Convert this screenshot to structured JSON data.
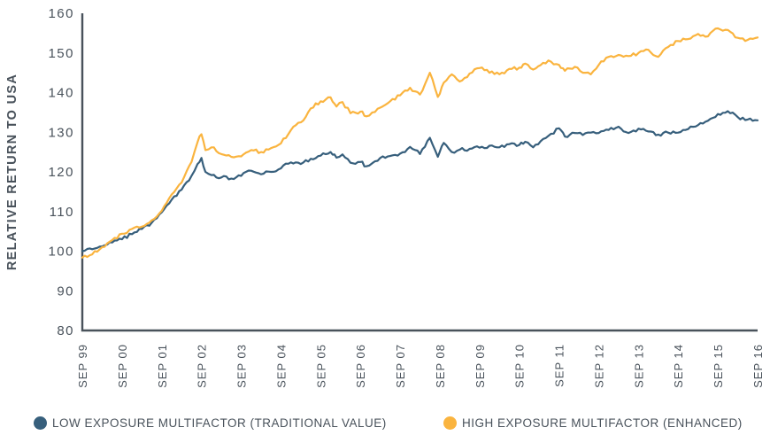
{
  "chart_data": {
    "type": "line",
    "title": "",
    "xlabel": "",
    "ylabel": "RELATIVE RETURN TO USA",
    "ylim": [
      80,
      160
    ],
    "yticks": [
      160,
      150,
      140,
      130,
      120,
      110,
      100,
      90,
      80
    ],
    "xtick_labels": [
      "SEP 99",
      "SEP 00",
      "SEP 01",
      "SEP 02",
      "SEP 03",
      "SEP 04",
      "SEP 05",
      "SEP 06",
      "SEP 07",
      "SEP 08",
      "SEP 09",
      "SEP 10",
      "SEP 11",
      "SEP 12",
      "SEP 13",
      "SEP 14",
      "SEP 15",
      "SEP 16"
    ],
    "x_unit": "years since Sep 1999 (one point ≈ quarterly, read from plot)",
    "grid": false,
    "legend_position": "bottom",
    "axis_color": "#49525B",
    "text_color": "#49525B",
    "noise_amplitude": 0.45,
    "x": [
      0.0,
      0.25,
      0.5,
      0.75,
      1.0,
      1.25,
      1.5,
      1.75,
      2.0,
      2.25,
      2.5,
      2.75,
      2.9,
      3.0,
      3.1,
      3.25,
      3.5,
      3.75,
      4.0,
      4.25,
      4.5,
      4.75,
      5.0,
      5.25,
      5.5,
      5.75,
      6.0,
      6.25,
      6.4,
      6.55,
      6.75,
      7.0,
      7.15,
      7.3,
      7.5,
      7.75,
      8.0,
      8.25,
      8.5,
      8.75,
      8.95,
      9.1,
      9.3,
      9.5,
      9.75,
      10.0,
      10.25,
      10.5,
      10.75,
      11.0,
      11.15,
      11.35,
      11.6,
      11.8,
      12.0,
      12.15,
      12.4,
      12.6,
      12.8,
      13.0,
      13.25,
      13.5,
      13.75,
      14.0,
      14.25,
      14.5,
      14.75,
      15.0,
      15.25,
      15.5,
      15.75,
      16.0,
      16.25,
      16.5,
      16.75,
      17.0
    ],
    "series": [
      {
        "name": "LOW EXPOSURE MULTIFACTOR (TRADITIONAL VALUE)",
        "color": "#375F7C",
        "values": [
          100.0,
          100.5,
          101.2,
          102.2,
          103.0,
          104.3,
          105.6,
          107.2,
          109.8,
          113.0,
          115.5,
          119.0,
          122.0,
          123.5,
          120.0,
          119.2,
          118.6,
          118.3,
          119.0,
          120.3,
          119.4,
          120.0,
          120.9,
          122.4,
          122.0,
          123.3,
          124.1,
          125.0,
          123.6,
          124.4,
          122.3,
          122.5,
          121.4,
          122.2,
          123.5,
          124.0,
          124.6,
          126.3,
          124.5,
          128.6,
          123.8,
          127.3,
          125.0,
          125.6,
          125.8,
          126.1,
          126.6,
          126.2,
          127.0,
          126.8,
          127.6,
          126.2,
          128.3,
          129.6,
          131.0,
          128.9,
          129.8,
          129.3,
          129.9,
          129.8,
          130.6,
          131.4,
          129.8,
          130.9,
          130.2,
          129.4,
          129.9,
          129.9,
          130.8,
          131.8,
          132.9,
          134.6,
          135.3,
          133.8,
          133.2,
          133.0
        ]
      },
      {
        "name": "HIGH EXPOSURE MULTIFACTOR (ENHANCED)",
        "color": "#FAB43F",
        "values": [
          98.4,
          99.2,
          101.0,
          102.8,
          104.4,
          105.6,
          106.2,
          107.8,
          110.2,
          114.3,
          117.3,
          122.5,
          127.5,
          129.5,
          125.5,
          126.2,
          124.5,
          123.8,
          123.9,
          125.5,
          125.0,
          126.0,
          127.2,
          130.5,
          132.5,
          136.0,
          137.8,
          138.8,
          136.5,
          137.6,
          134.8,
          135.2,
          134.0,
          135.0,
          136.2,
          137.8,
          139.3,
          141.2,
          139.5,
          145.0,
          138.9,
          142.5,
          144.6,
          142.8,
          144.8,
          146.2,
          145.0,
          144.6,
          146.0,
          146.3,
          147.3,
          145.8,
          147.5,
          147.8,
          147.0,
          145.5,
          146.5,
          145.0,
          144.6,
          147.0,
          149.0,
          149.5,
          149.2,
          150.0,
          150.8,
          149.0,
          151.5,
          153.0,
          153.5,
          154.8,
          154.2,
          156.2,
          155.8,
          153.8,
          153.3,
          153.9
        ]
      }
    ]
  }
}
